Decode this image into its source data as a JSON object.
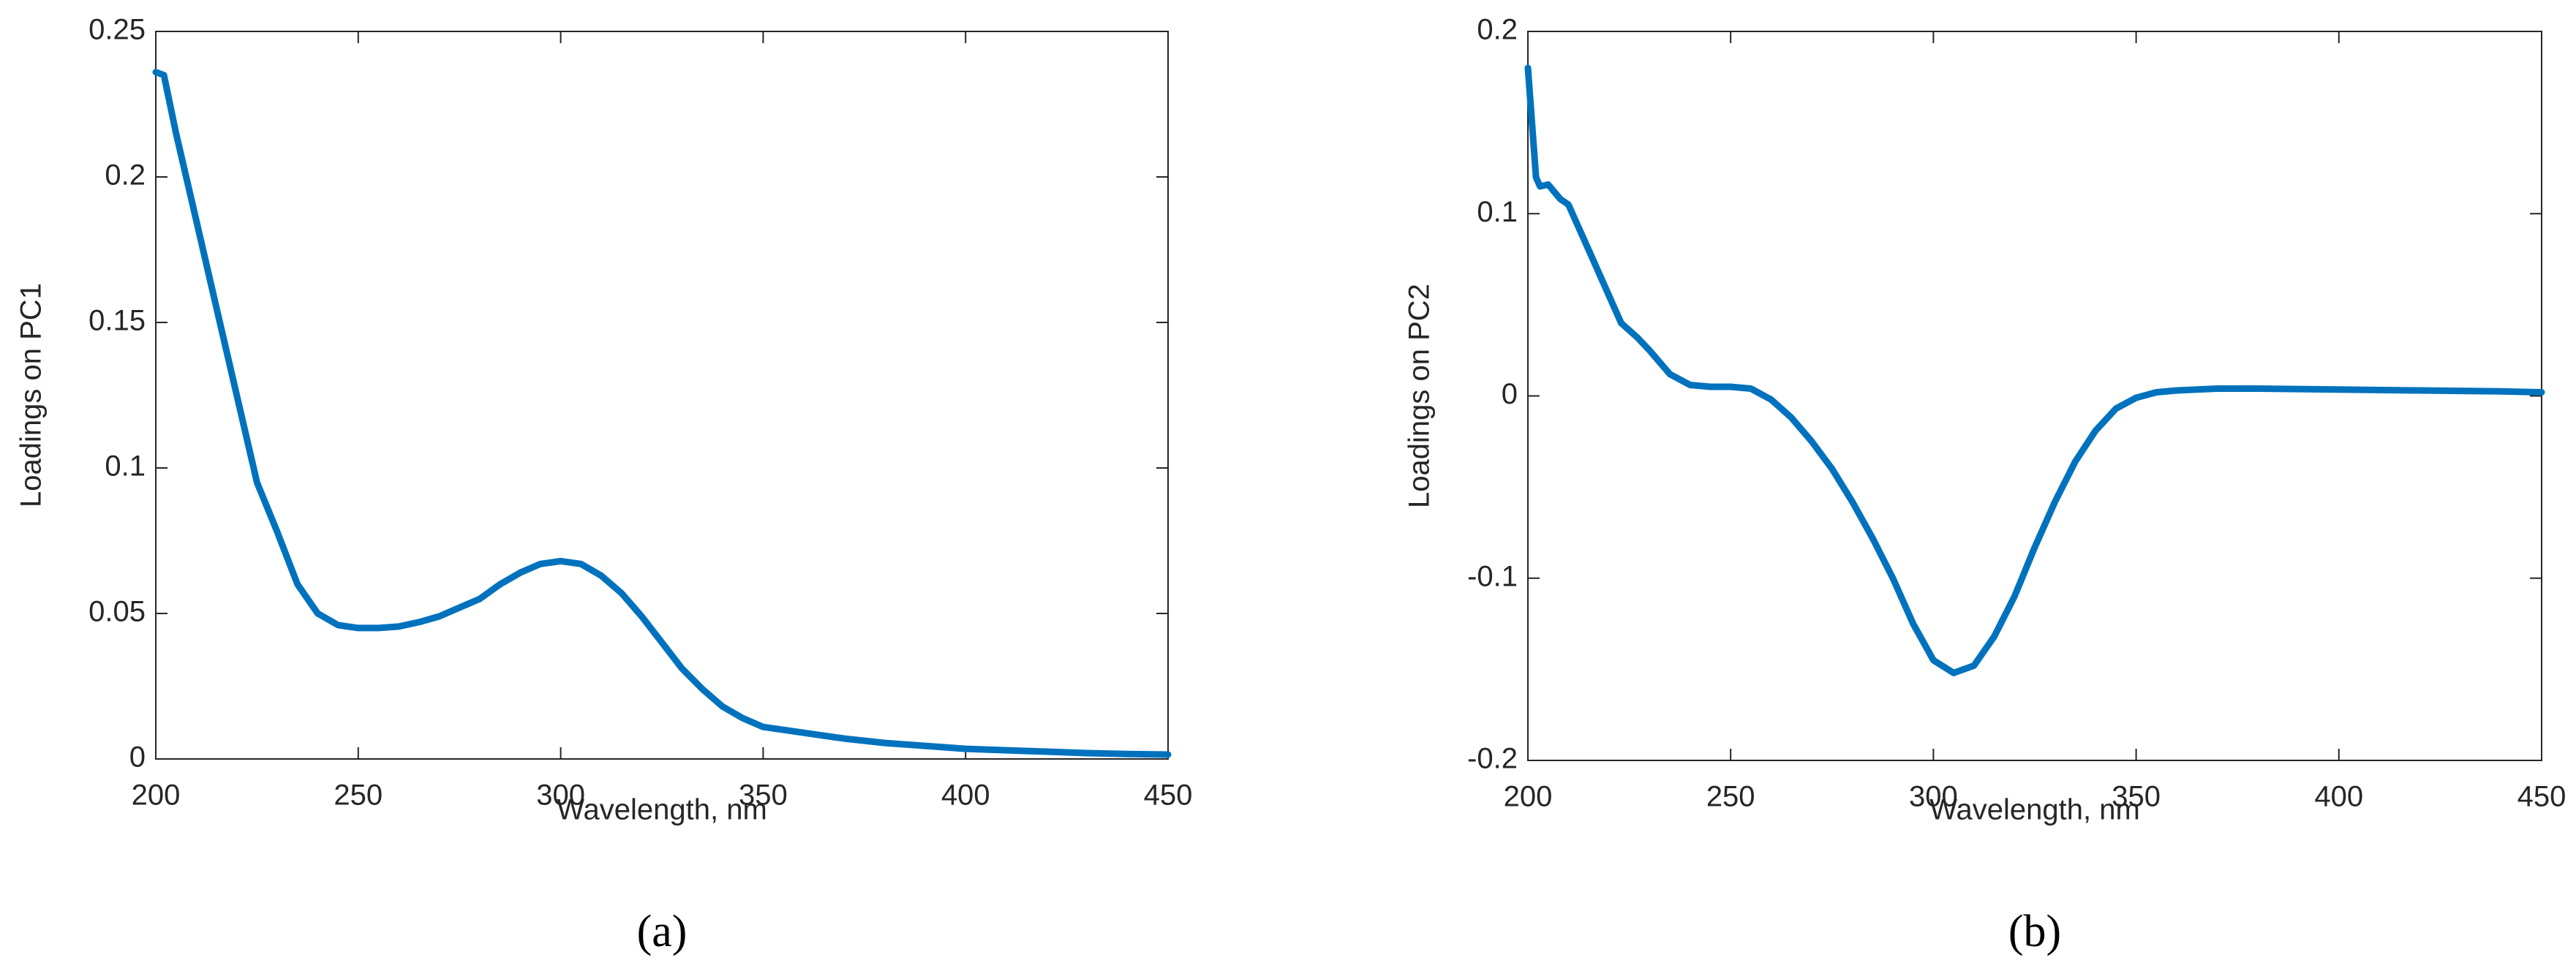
{
  "chart_data": [
    {
      "type": "line",
      "caption": "(a)",
      "x_label": "Wavelength, nm",
      "y_label": "Loadings on PC1",
      "xlim": [
        200,
        450
      ],
      "xticks": [
        200,
        250,
        300,
        350,
        400,
        450
      ],
      "ylim": [
        0,
        0.25
      ],
      "yticks": [
        0,
        0.05,
        0.1,
        0.15,
        0.2,
        0.25
      ],
      "grid": false,
      "x": [
        200,
        202,
        205,
        210,
        215,
        220,
        225,
        230,
        235,
        240,
        245,
        250,
        255,
        260,
        265,
        270,
        275,
        280,
        285,
        290,
        295,
        300,
        305,
        310,
        315,
        320,
        325,
        330,
        335,
        340,
        345,
        350,
        360,
        370,
        380,
        390,
        400,
        410,
        420,
        430,
        440,
        450
      ],
      "series": [
        {
          "color": "#0072bd",
          "values": [
            0.236,
            0.235,
            0.215,
            0.185,
            0.155,
            0.125,
            0.095,
            0.078,
            0.06,
            0.05,
            0.046,
            0.045,
            0.045,
            0.0455,
            0.047,
            0.049,
            0.052,
            0.055,
            0.06,
            0.064,
            0.067,
            0.068,
            0.067,
            0.063,
            0.057,
            0.049,
            0.04,
            0.031,
            0.024,
            0.018,
            0.014,
            0.011,
            0.009,
            0.007,
            0.0055,
            0.0045,
            0.0035,
            0.003,
            0.0025,
            0.002,
            0.0017,
            0.0015
          ]
        }
      ]
    },
    {
      "type": "line",
      "caption": "(b)",
      "x_label": "Wavelength, nm",
      "y_label": "Loadings on PC2",
      "xlim": [
        200,
        450
      ],
      "xticks": [
        200,
        250,
        300,
        350,
        400,
        450
      ],
      "ylim": [
        -0.2,
        0.2
      ],
      "yticks": [
        -0.2,
        -0.1,
        0,
        0.1,
        0.2
      ],
      "grid": false,
      "x": [
        200,
        202,
        203,
        205,
        208,
        210,
        215,
        220,
        223,
        227,
        230,
        235,
        240,
        245,
        250,
        255,
        260,
        265,
        270,
        275,
        280,
        285,
        290,
        295,
        300,
        305,
        310,
        315,
        320,
        325,
        330,
        335,
        340,
        345,
        350,
        355,
        360,
        370,
        380,
        400,
        420,
        440,
        450
      ],
      "series": [
        {
          "color": "#0072bd",
          "values": [
            0.18,
            0.12,
            0.115,
            0.116,
            0.108,
            0.105,
            0.08,
            0.055,
            0.04,
            0.032,
            0.025,
            0.012,
            0.006,
            0.005,
            0.005,
            0.004,
            -0.002,
            -0.012,
            -0.025,
            -0.04,
            -0.058,
            -0.078,
            -0.1,
            -0.125,
            -0.145,
            -0.152,
            -0.148,
            -0.132,
            -0.11,
            -0.083,
            -0.058,
            -0.036,
            -0.019,
            -0.007,
            -0.001,
            0.002,
            0.003,
            0.004,
            0.004,
            0.0035,
            0.003,
            0.0025,
            0.002
          ]
        }
      ]
    }
  ]
}
